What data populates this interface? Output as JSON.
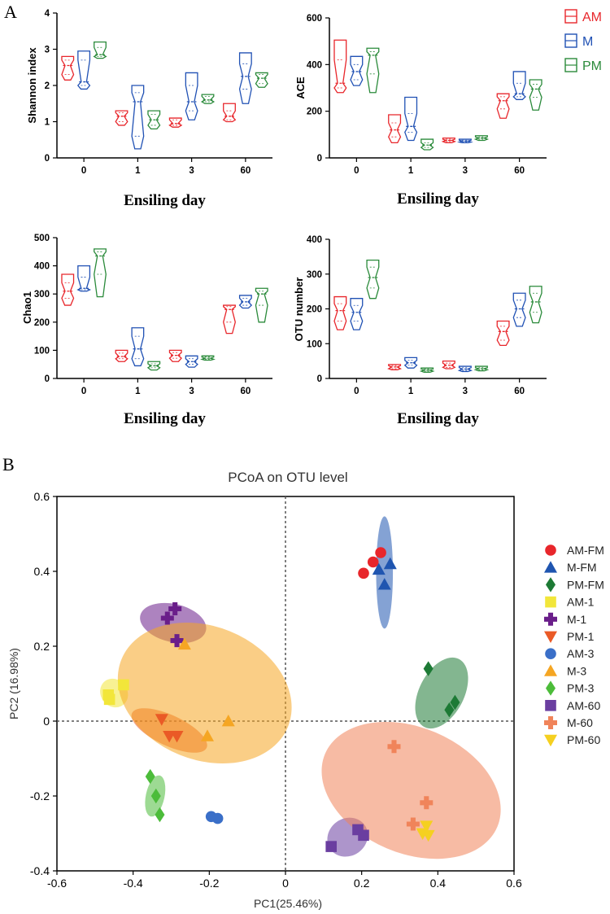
{
  "panel_labels": {
    "a": "A",
    "b": "B"
  },
  "colors": {
    "AM": "#e8262b",
    "M": "#2051b4",
    "PM": "#2a8a3a",
    "axis": "#000000",
    "refline": "#555555"
  },
  "legend_a": [
    {
      "key": "AM",
      "label": "AM"
    },
    {
      "key": "M",
      "label": "M"
    },
    {
      "key": "PM",
      "label": "PM"
    }
  ],
  "chart_data": [
    {
      "id": "shannon",
      "type": "violin",
      "title": "",
      "xlabel": "Ensiling day",
      "ylabel": "Shannon index",
      "categories": [
        "0",
        "1",
        "3",
        "60"
      ],
      "ylim": [
        0,
        4
      ],
      "yticks": [
        "0",
        "1",
        "2",
        "3",
        "4"
      ],
      "series": [
        {
          "name": "AM",
          "groups": [
            {
              "min": 2.15,
              "max": 2.8,
              "median": 2.55,
              "q1": 2.3,
              "q3": 2.7
            },
            {
              "min": 0.9,
              "max": 1.3,
              "median": 1.15,
              "q1": 1.0,
              "q3": 1.25
            },
            {
              "min": 0.85,
              "max": 1.1,
              "median": 0.95,
              "q1": 0.9,
              "q3": 1.05
            },
            {
              "min": 1.0,
              "max": 1.5,
              "median": 1.15,
              "q1": 1.05,
              "q3": 1.3
            }
          ]
        },
        {
          "name": "M",
          "groups": [
            {
              "min": 1.9,
              "max": 2.95,
              "median": 2.1,
              "q1": 2.0,
              "q3": 2.7
            },
            {
              "min": 0.25,
              "max": 2.0,
              "median": 1.55,
              "q1": 0.6,
              "q3": 1.8
            },
            {
              "min": 1.05,
              "max": 2.35,
              "median": 1.55,
              "q1": 1.3,
              "q3": 2.0
            },
            {
              "min": 1.5,
              "max": 2.9,
              "median": 2.25,
              "q1": 1.9,
              "q3": 2.6
            }
          ]
        },
        {
          "name": "PM",
          "groups": [
            {
              "min": 2.75,
              "max": 3.2,
              "median": 2.85,
              "q1": 2.8,
              "q3": 3.05
            },
            {
              "min": 0.8,
              "max": 1.3,
              "median": 1.05,
              "q1": 0.9,
              "q3": 1.2
            },
            {
              "min": 1.5,
              "max": 1.75,
              "median": 1.6,
              "q1": 1.55,
              "q3": 1.7
            },
            {
              "min": 1.95,
              "max": 2.35,
              "median": 2.2,
              "q1": 2.05,
              "q3": 2.3
            }
          ]
        }
      ]
    },
    {
      "id": "ace",
      "type": "violin",
      "title": "",
      "xlabel": "Ensiling day",
      "ylabel": "ACE",
      "categories": [
        "0",
        "1",
        "3",
        "60"
      ],
      "ylim": [
        0,
        600
      ],
      "yticks": [
        "0",
        "200",
        "400",
        "600"
      ],
      "series": [
        {
          "name": "AM",
          "groups": [
            {
              "min": 280,
              "max": 505,
              "median": 320,
              "q1": 300,
              "q3": 420
            },
            {
              "min": 65,
              "max": 185,
              "median": 120,
              "q1": 90,
              "q3": 150
            },
            {
              "min": 65,
              "max": 85,
              "median": 75,
              "q1": 70,
              "q3": 80
            },
            {
              "min": 170,
              "max": 275,
              "median": 245,
              "q1": 210,
              "q3": 262
            }
          ]
        },
        {
          "name": "M",
          "groups": [
            {
              "min": 310,
              "max": 435,
              "median": 370,
              "q1": 335,
              "q3": 400
            },
            {
              "min": 75,
              "max": 260,
              "median": 135,
              "q1": 110,
              "q3": 190
            },
            {
              "min": 65,
              "max": 80,
              "median": 72,
              "q1": 68,
              "q3": 76
            },
            {
              "min": 250,
              "max": 370,
              "median": 275,
              "q1": 262,
              "q3": 320
            }
          ]
        },
        {
          "name": "PM",
          "groups": [
            {
              "min": 280,
              "max": 470,
              "median": 440,
              "q1": 360,
              "q3": 455
            },
            {
              "min": 35,
              "max": 80,
              "median": 55,
              "q1": 45,
              "q3": 65
            },
            {
              "min": 75,
              "max": 95,
              "median": 85,
              "q1": 80,
              "q3": 90
            },
            {
              "min": 205,
              "max": 335,
              "median": 295,
              "q1": 260,
              "q3": 315
            }
          ]
        }
      ]
    },
    {
      "id": "chao1",
      "type": "violin",
      "title": "",
      "xlabel": "Ensiling day",
      "ylabel": "Chao1",
      "categories": [
        "0",
        "1",
        "3",
        "60"
      ],
      "ylim": [
        0,
        500
      ],
      "yticks": [
        "0",
        "100",
        "200",
        "300",
        "400",
        "500"
      ],
      "series": [
        {
          "name": "AM",
          "groups": [
            {
              "min": 260,
              "max": 370,
              "median": 310,
              "q1": 285,
              "q3": 340
            },
            {
              "min": 60,
              "max": 100,
              "median": 78,
              "q1": 70,
              "q3": 90
            },
            {
              "min": 60,
              "max": 100,
              "median": 82,
              "q1": 72,
              "q3": 92
            },
            {
              "min": 160,
              "max": 260,
              "median": 245,
              "q1": 200,
              "q3": 255
            }
          ]
        },
        {
          "name": "M",
          "groups": [
            {
              "min": 310,
              "max": 400,
              "median": 320,
              "q1": 315,
              "q3": 360
            },
            {
              "min": 45,
              "max": 180,
              "median": 105,
              "q1": 70,
              "q3": 150
            },
            {
              "min": 40,
              "max": 80,
              "median": 60,
              "q1": 50,
              "q3": 70
            },
            {
              "min": 250,
              "max": 295,
              "median": 272,
              "q1": 260,
              "q3": 285
            }
          ]
        },
        {
          "name": "PM",
          "groups": [
            {
              "min": 290,
              "max": 460,
              "median": 435,
              "q1": 370,
              "q3": 450
            },
            {
              "min": 30,
              "max": 60,
              "median": 45,
              "q1": 38,
              "q3": 52
            },
            {
              "min": 65,
              "max": 80,
              "median": 72,
              "q1": 68,
              "q3": 76
            },
            {
              "min": 200,
              "max": 320,
              "median": 300,
              "q1": 260,
              "q3": 310
            }
          ]
        }
      ]
    },
    {
      "id": "otu",
      "type": "violin",
      "title": "",
      "xlabel": "Ensiling day",
      "ylabel": "OTU number",
      "categories": [
        "0",
        "1",
        "3",
        "60"
      ],
      "ylim": [
        0,
        400
      ],
      "yticks": [
        "0",
        "100",
        "200",
        "300",
        "400"
      ],
      "series": [
        {
          "name": "AM",
          "groups": [
            {
              "min": 140,
              "max": 235,
              "median": 195,
              "q1": 165,
              "q3": 215
            },
            {
              "min": 25,
              "max": 40,
              "median": 33,
              "q1": 28,
              "q3": 37
            },
            {
              "min": 28,
              "max": 50,
              "median": 38,
              "q1": 32,
              "q3": 44
            },
            {
              "min": 95,
              "max": 165,
              "median": 135,
              "q1": 110,
              "q3": 150
            }
          ]
        },
        {
          "name": "M",
          "groups": [
            {
              "min": 140,
              "max": 230,
              "median": 190,
              "q1": 165,
              "q3": 210
            },
            {
              "min": 30,
              "max": 60,
              "median": 45,
              "q1": 38,
              "q3": 52
            },
            {
              "min": 20,
              "max": 35,
              "median": 27,
              "q1": 23,
              "q3": 31
            },
            {
              "min": 150,
              "max": 245,
              "median": 200,
              "q1": 175,
              "q3": 225
            }
          ]
        },
        {
          "name": "PM",
          "groups": [
            {
              "min": 230,
              "max": 340,
              "median": 290,
              "q1": 260,
              "q3": 320
            },
            {
              "min": 18,
              "max": 30,
              "median": 24,
              "q1": 21,
              "q3": 27
            },
            {
              "min": 22,
              "max": 35,
              "median": 28,
              "q1": 25,
              "q3": 31
            },
            {
              "min": 160,
              "max": 265,
              "median": 220,
              "q1": 190,
              "q3": 245
            }
          ]
        }
      ]
    },
    {
      "id": "pcoa",
      "type": "scatter",
      "title": "PCoA on OTU level",
      "xlabel": "PC1(25.46%)",
      "ylabel": "PC2 (16.98%)",
      "xlim": [
        -0.6,
        0.6
      ],
      "ylim": [
        -0.4,
        0.6
      ],
      "xticks": [
        "-0.6",
        "-0.4",
        "-0.2",
        "0",
        "0.2",
        "0.4",
        "0.6"
      ],
      "yticks": [
        "-0.4",
        "-0.2",
        "0",
        "0.2",
        "0.4",
        "0.6"
      ],
      "series": [
        {
          "name": "AM-FM",
          "color": "#e8262b",
          "marker": "circle",
          "points": [
            [
              0.205,
              0.395
            ],
            [
              0.23,
              0.425
            ],
            [
              0.25,
              0.45
            ]
          ],
          "ellipse": null
        },
        {
          "name": "M-FM",
          "color": "#1f55b0",
          "marker": "triangle-up",
          "points": [
            [
              0.245,
              0.405
            ],
            [
              0.26,
              0.365
            ],
            [
              0.275,
              0.42
            ]
          ],
          "ellipse": {
            "cx": 0.26,
            "cy": 0.397,
            "rx": 0.022,
            "ry": 0.03,
            "angle": 0
          }
        },
        {
          "name": "PM-FM",
          "color": "#1d7a35",
          "marker": "diamond",
          "points": [
            [
              0.375,
              0.14
            ],
            [
              0.43,
              0.03
            ],
            [
              0.445,
              0.05
            ]
          ],
          "ellipse": {
            "cx": 0.41,
            "cy": 0.075,
            "rx": 0.1,
            "ry": 0.012,
            "angle": -63
          }
        },
        {
          "name": "AM-1",
          "color": "#f2e63a",
          "marker": "square",
          "points": [
            [
              -0.465,
              0.07
            ],
            [
              -0.462,
              0.058
            ],
            [
              -0.425,
              0.097
            ]
          ],
          "ellipse": {
            "cx": -0.45,
            "cy": 0.075,
            "rx": 0.035,
            "ry": 0.008,
            "angle": -38
          }
        },
        {
          "name": "M-1",
          "color": "#6a1e8a",
          "marker": "plus",
          "points": [
            [
              -0.31,
              0.275
            ],
            [
              -0.29,
              0.3
            ],
            [
              -0.285,
              0.215
            ]
          ],
          "ellipse": {
            "cx": -0.295,
            "cy": 0.262,
            "rx": 0.05,
            "ry": 0.018,
            "angle": -77
          }
        },
        {
          "name": "PM-1",
          "color": "#ea5a26",
          "marker": "triangle-down",
          "points": [
            [
              -0.325,
              0.005
            ],
            [
              -0.305,
              -0.04
            ],
            [
              -0.285,
              -0.04
            ]
          ],
          "ellipse": {
            "cx": -0.305,
            "cy": -0.025,
            "rx": 0.04,
            "ry": 0.022,
            "angle": -65
          }
        },
        {
          "name": "AM-3",
          "color": "#3a6fc8",
          "marker": "circle",
          "points": [
            [
              -0.195,
              -0.255
            ],
            [
              -0.178,
              -0.26
            ]
          ],
          "ellipse": null
        },
        {
          "name": "M-3",
          "color": "#f5a623",
          "marker": "triangle-up",
          "points": [
            [
              -0.265,
              0.205
            ],
            [
              -0.205,
              -0.04
            ],
            [
              -0.15,
              0.0
            ]
          ],
          "ellipse": {
            "cx": -0.212,
            "cy": 0.075,
            "rx": 0.175,
            "ry": 0.048,
            "angle": -68
          }
        },
        {
          "name": "PM-3",
          "color": "#4cbc3a",
          "marker": "diamond",
          "points": [
            [
              -0.355,
              -0.148
            ],
            [
              -0.34,
              -0.2
            ],
            [
              -0.33,
              -0.25
            ]
          ],
          "ellipse": {
            "cx": -0.342,
            "cy": -0.2,
            "rx": 0.055,
            "ry": 0.005,
            "angle": -78
          }
        },
        {
          "name": "AM-60",
          "color": "#6a3ea0",
          "marker": "square",
          "points": [
            [
              0.12,
              -0.335
            ],
            [
              0.19,
              -0.29
            ],
            [
              0.205,
              -0.305
            ]
          ],
          "ellipse": {
            "cx": 0.163,
            "cy": -0.31,
            "rx": 0.055,
            "ry": 0.01,
            "angle": -35
          }
        },
        {
          "name": "M-60",
          "color": "#f0845a",
          "marker": "plus",
          "points": [
            [
              0.285,
              -0.068
            ],
            [
              0.335,
              -0.275
            ],
            [
              0.37,
              -0.218
            ]
          ],
          "ellipse": {
            "cx": 0.33,
            "cy": -0.185,
            "rx": 0.165,
            "ry": 0.05,
            "angle": -67
          }
        },
        {
          "name": "PM-60",
          "color": "#f5d020",
          "marker": "triangle-down",
          "points": [
            [
              0.36,
              -0.3
            ],
            [
              0.37,
              -0.28
            ],
            [
              0.375,
              -0.305
            ]
          ],
          "ellipse": null
        }
      ]
    }
  ]
}
